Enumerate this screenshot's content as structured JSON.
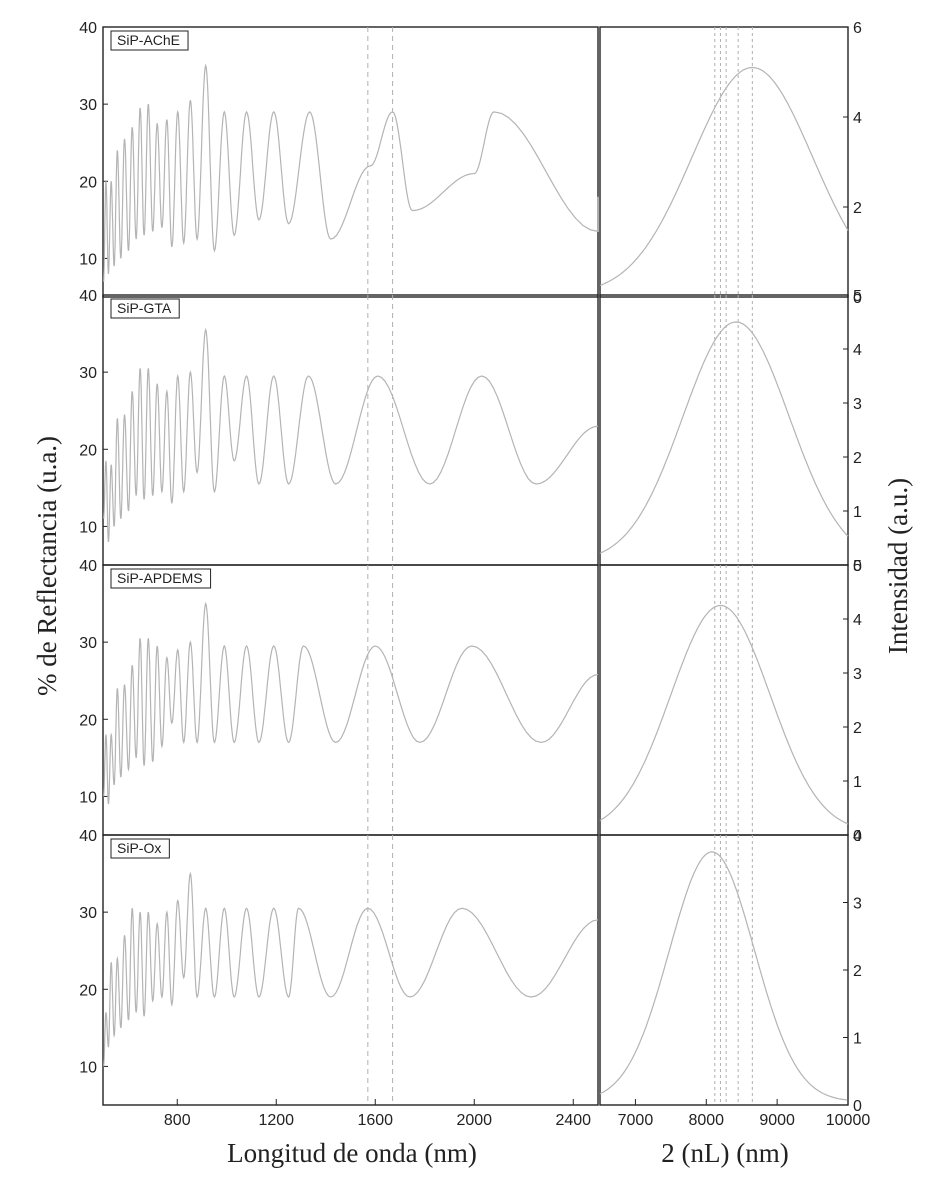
{
  "figure": {
    "left_xlabel": "Longitud de onda (nm)",
    "left_ylabel": "% de Reflectancia (u.a.)",
    "right_xlabel": "2 (nL) (nm)",
    "right_ylabel": "Intensidad (a.u.)"
  },
  "colors": {
    "curve": "#b4b4b4",
    "axis": "#222222",
    "ref_line": "#b0b0b0"
  },
  "chart_data": [
    {
      "type": "line",
      "chart": "reflectance",
      "xlabel": "Longitud de onda (nm)",
      "ylabel": "% de Reflectancia (u.a.)",
      "xlim": [
        500,
        2500
      ],
      "x_ticks": [
        800,
        1200,
        1600,
        2000,
        2400
      ],
      "ylim": [
        5,
        40
      ],
      "y_ticks": [
        10,
        20,
        30,
        40
      ],
      "reference_lines_x": [
        1570,
        1670
      ],
      "panels": [
        {
          "label": "SiP-AChE",
          "valleys_x": [
            502,
            522,
            545,
            572,
            603,
            634,
            666,
            701,
            738,
            778,
            826,
            880,
            950,
            1030,
            1130,
            1250,
            1420,
            1580,
            1750,
            2000,
            2500
          ],
          "valleys_y": [
            7,
            8,
            9,
            10,
            11,
            12.5,
            13,
            13.5,
            14,
            11.5,
            12,
            12.5,
            11,
            13,
            15,
            14.5,
            12.5,
            22,
            16.2,
            21,
            13.5
          ],
          "peaks_x": [
            512,
            533,
            558,
            587,
            618,
            650,
            683,
            719,
            758,
            802,
            853,
            915,
            990,
            1080,
            1190,
            1335,
            1670,
            2080
          ],
          "peaks_y": [
            20,
            20,
            24,
            25.5,
            27,
            29.5,
            30,
            27.5,
            28,
            29,
            30.5,
            35,
            29
          ],
          "peaks_x_note": "",
          "end_y": 18
        },
        {
          "label": "SiP-GTA",
          "valleys_x": [
            502,
            522,
            545,
            572,
            603,
            634,
            666,
            701,
            738,
            778,
            826,
            880,
            950,
            1030,
            1130,
            1250,
            1440,
            1820,
            2250
          ],
          "valleys_y": [
            11,
            8,
            10,
            11,
            12,
            14,
            13.5,
            14,
            14.5,
            13,
            14.5,
            17,
            14.5,
            18.5,
            15.5
          ],
          "peaks_x": [
            512,
            533,
            558,
            587,
            618,
            650,
            683,
            719,
            758,
            802,
            853,
            915,
            990,
            1080,
            1190,
            1330,
            1610,
            2030
          ],
          "peaks_y": [
            18.5,
            18,
            24,
            24.5,
            27.5,
            30.5,
            30.5,
            28.5,
            27.5,
            29.5,
            30,
            35.5,
            29.5
          ],
          "end_y": 23
        },
        {
          "label": "SiP-APDEMS",
          "valleys_x": [
            502,
            522,
            545,
            572,
            603,
            634,
            666,
            701,
            738,
            778,
            826,
            880,
            950,
            1030,
            1130,
            1250,
            1440,
            1780,
            2270
          ],
          "valleys_y": [
            10,
            9,
            11.5,
            12.5,
            13.5,
            15,
            14,
            14.5,
            16.5,
            19.5,
            17
          ],
          "peaks_x": [
            512,
            533,
            558,
            587,
            618,
            650,
            683,
            719,
            758,
            802,
            853,
            915,
            990,
            1080,
            1190,
            1310,
            1600,
            1990
          ],
          "peaks_y": [
            18,
            18,
            24,
            24.5,
            27,
            30.5,
            30.5,
            29.5,
            28,
            29,
            30,
            35,
            29.5
          ],
          "end_y": 25.8
        },
        {
          "label": "SiP-Ox",
          "valleys_x": [
            502,
            522,
            545,
            572,
            603,
            634,
            666,
            701,
            738,
            778,
            826,
            880,
            950,
            1030,
            1130,
            1250,
            1420,
            1740,
            2230
          ],
          "valleys_y": [
            10,
            12.5,
            14,
            15,
            16,
            17,
            16.5,
            18.5,
            19,
            18,
            21.5,
            19
          ],
          "peaks_x": [
            512,
            533,
            558,
            587,
            618,
            650,
            683,
            719,
            758,
            802,
            853,
            915,
            990,
            1080,
            1190,
            1290,
            1570,
            1950
          ],
          "peaks_y": [
            17,
            23.5,
            24,
            27,
            30.5,
            30,
            30,
            28.5,
            30,
            31.5,
            35,
            30.5
          ],
          "end_y": 29
        }
      ]
    },
    {
      "type": "line",
      "chart": "fft",
      "xlabel": "2 (nL) (nm)",
      "ylabel": "Intensidad (a.u.)",
      "xlim": [
        6500,
        10000
      ],
      "x_ticks": [
        7000,
        8000,
        9000,
        10000
      ],
      "reference_lines_x": [
        8120,
        8200,
        8280,
        8450,
        8650
      ],
      "panels": [
        {
          "label": "SiP-AChE",
          "ylim": [
            0,
            6
          ],
          "y_ticks": [
            0,
            2,
            4,
            6
          ],
          "peak_x": 8650,
          "peak_y": 5.05,
          "sigma": 850
        },
        {
          "label": "SiP-GTA",
          "ylim": [
            0,
            5
          ],
          "y_ticks": [
            0,
            1,
            2,
            3,
            4,
            5
          ],
          "peak_x": 8420,
          "peak_y": 4.45,
          "sigma": 750
        },
        {
          "label": "SiP-APDEMS",
          "ylim": [
            0,
            5
          ],
          "y_ticks": [
            0,
            1,
            2,
            3,
            4,
            5
          ],
          "peak_x": 8200,
          "peak_y": 4.2,
          "sigma": 700
        },
        {
          "label": "SiP-Ox",
          "ylim": [
            0,
            4
          ],
          "y_ticks": [
            0,
            1,
            2,
            3,
            4
          ],
          "peak_x": 8080,
          "peak_y": 3.7,
          "sigma": 600
        }
      ]
    }
  ]
}
